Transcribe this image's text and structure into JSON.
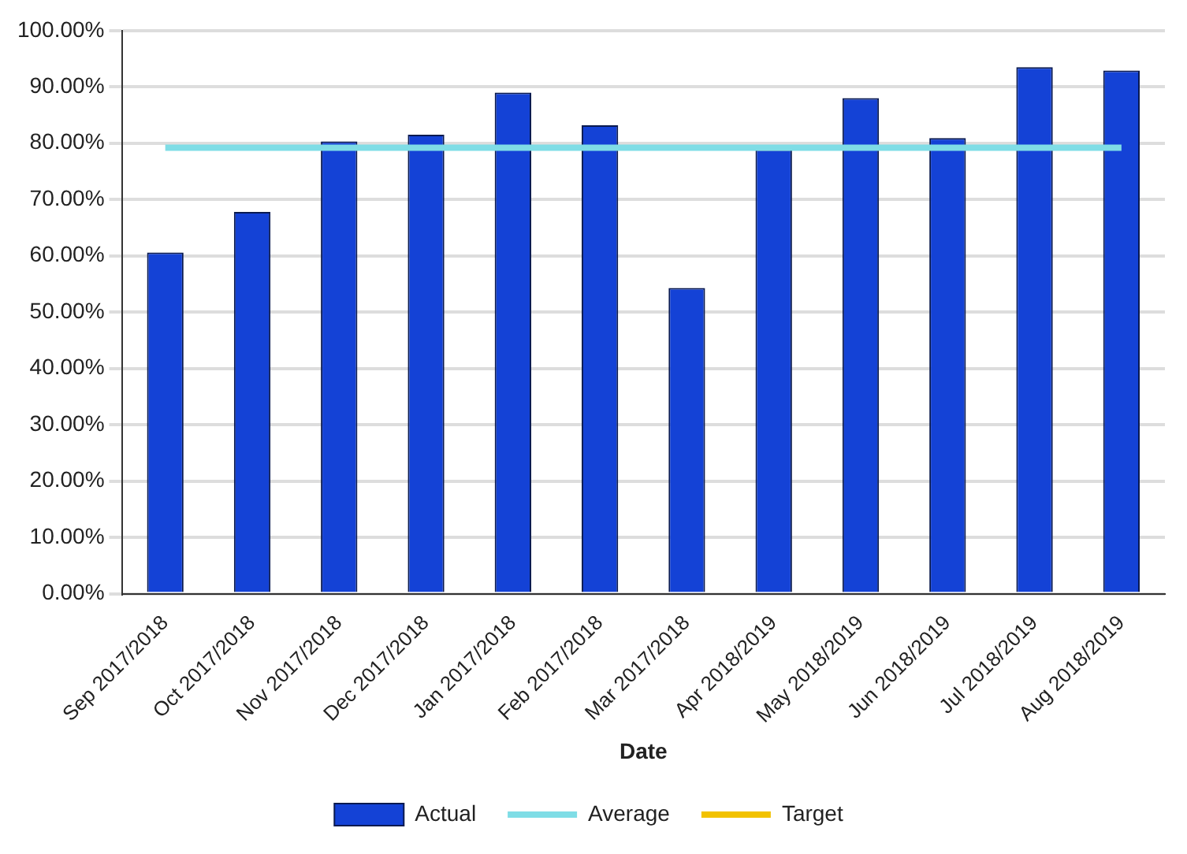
{
  "chart_data": {
    "type": "bar",
    "xlabel": "Date",
    "categories": [
      "Sep 2017/2018",
      "Oct 2017/2018",
      "Nov 2017/2018",
      "Dec 2017/2018",
      "Jan 2017/2018",
      "Feb 2017/2018",
      "Mar 2017/2018",
      "Apr 2018/2019",
      "May 2018/2019",
      "Jun 2018/2019",
      "Jul 2018/2019",
      "Aug 2018/2019"
    ],
    "series": [
      {
        "name": "Actual",
        "color": "#1442d6",
        "values": [
          60.6,
          67.8,
          80.3,
          81.5,
          89.0,
          83.2,
          54.3,
          78.9,
          88.0,
          80.9,
          93.5,
          92.9
        ]
      },
      {
        "name": "Average",
        "type": "line",
        "color": "#7fdde6",
        "values": [
          79.2,
          79.2,
          79.2,
          79.2,
          79.2,
          79.2,
          79.2,
          79.2,
          79.2,
          79.2,
          79.2,
          79.2
        ]
      },
      {
        "name": "Target",
        "type": "line",
        "color": "#f2c200",
        "values": [
          null,
          null,
          null,
          null,
          null,
          null,
          null,
          null,
          null,
          null,
          null,
          null
        ]
      }
    ],
    "ylim": [
      0,
      100
    ],
    "yticks": [
      {
        "value": 0,
        "label": "0.00%"
      },
      {
        "value": 10,
        "label": "10.00%"
      },
      {
        "value": 20,
        "label": "20.00%"
      },
      {
        "value": 30,
        "label": "30.00%"
      },
      {
        "value": 40,
        "label": "40.00%"
      },
      {
        "value": 50,
        "label": "50.00%"
      },
      {
        "value": 60,
        "label": "60.00%"
      },
      {
        "value": 70,
        "label": "70.00%"
      },
      {
        "value": 80,
        "label": "80.00%"
      },
      {
        "value": 90,
        "label": "90.00%"
      },
      {
        "value": 100,
        "label": "100.00%"
      }
    ],
    "grid": "y",
    "legend": "bottom",
    "marker": "none",
    "line_style": "solid"
  }
}
